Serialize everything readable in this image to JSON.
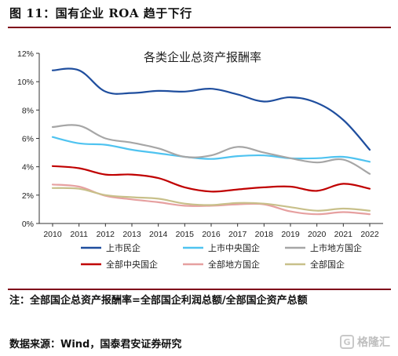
{
  "figure": {
    "title": "图 11：国有企业 ROA 趋于下行",
    "note": "注：全部国企总资产报酬率=全部国企利润总额/全部国企资产总额",
    "source": "数据来源：Wind，国泰君安证券研究",
    "watermark_text": "格隆汇",
    "watermark_icon": "g-logo-icon"
  },
  "chart_data": {
    "type": "line",
    "title": "各类企业总资产报酬率",
    "xlabel": "",
    "ylabel": "",
    "x": [
      "2010",
      "2011",
      "2012",
      "2013",
      "2014",
      "2015",
      "2016",
      "2017",
      "2018",
      "2019",
      "2020",
      "2021",
      "2022"
    ],
    "y_ticks": [
      "0%",
      "2%",
      "4%",
      "6%",
      "8%",
      "10%",
      "12%"
    ],
    "ylim": [
      0,
      12
    ],
    "grid": false,
    "legend_position": "bottom",
    "series": [
      {
        "name": "上市民企",
        "color": "#1f4e9e",
        "values": [
          10.8,
          10.8,
          9.3,
          9.2,
          9.35,
          9.3,
          9.5,
          9.1,
          8.6,
          8.9,
          8.5,
          7.3,
          5.2
        ]
      },
      {
        "name": "上市中央国企",
        "color": "#4fc3f0",
        "values": [
          6.1,
          5.65,
          5.55,
          5.2,
          4.95,
          4.7,
          4.55,
          4.75,
          4.8,
          4.6,
          4.6,
          4.7,
          4.35
        ]
      },
      {
        "name": "上市地方国企",
        "color": "#a6a6a6",
        "values": [
          6.8,
          6.9,
          6.0,
          5.7,
          5.3,
          4.7,
          4.8,
          5.4,
          5.0,
          4.6,
          4.3,
          4.5,
          3.5
        ]
      },
      {
        "name": "全部中央国企",
        "color": "#c00000",
        "values": [
          4.05,
          3.9,
          3.45,
          3.45,
          3.2,
          2.55,
          2.25,
          2.4,
          2.55,
          2.6,
          2.3,
          2.8,
          2.45
        ]
      },
      {
        "name": "全部地方国企",
        "color": "#e6a0a0",
        "values": [
          2.75,
          2.6,
          1.95,
          1.7,
          1.5,
          1.25,
          1.25,
          1.35,
          1.35,
          0.85,
          0.65,
          0.8,
          0.65
        ]
      },
      {
        "name": "全部国企",
        "color": "#c8c08a",
        "values": [
          2.5,
          2.45,
          2.0,
          1.85,
          1.75,
          1.4,
          1.3,
          1.45,
          1.4,
          1.15,
          0.9,
          1.05,
          0.9
        ]
      }
    ]
  }
}
